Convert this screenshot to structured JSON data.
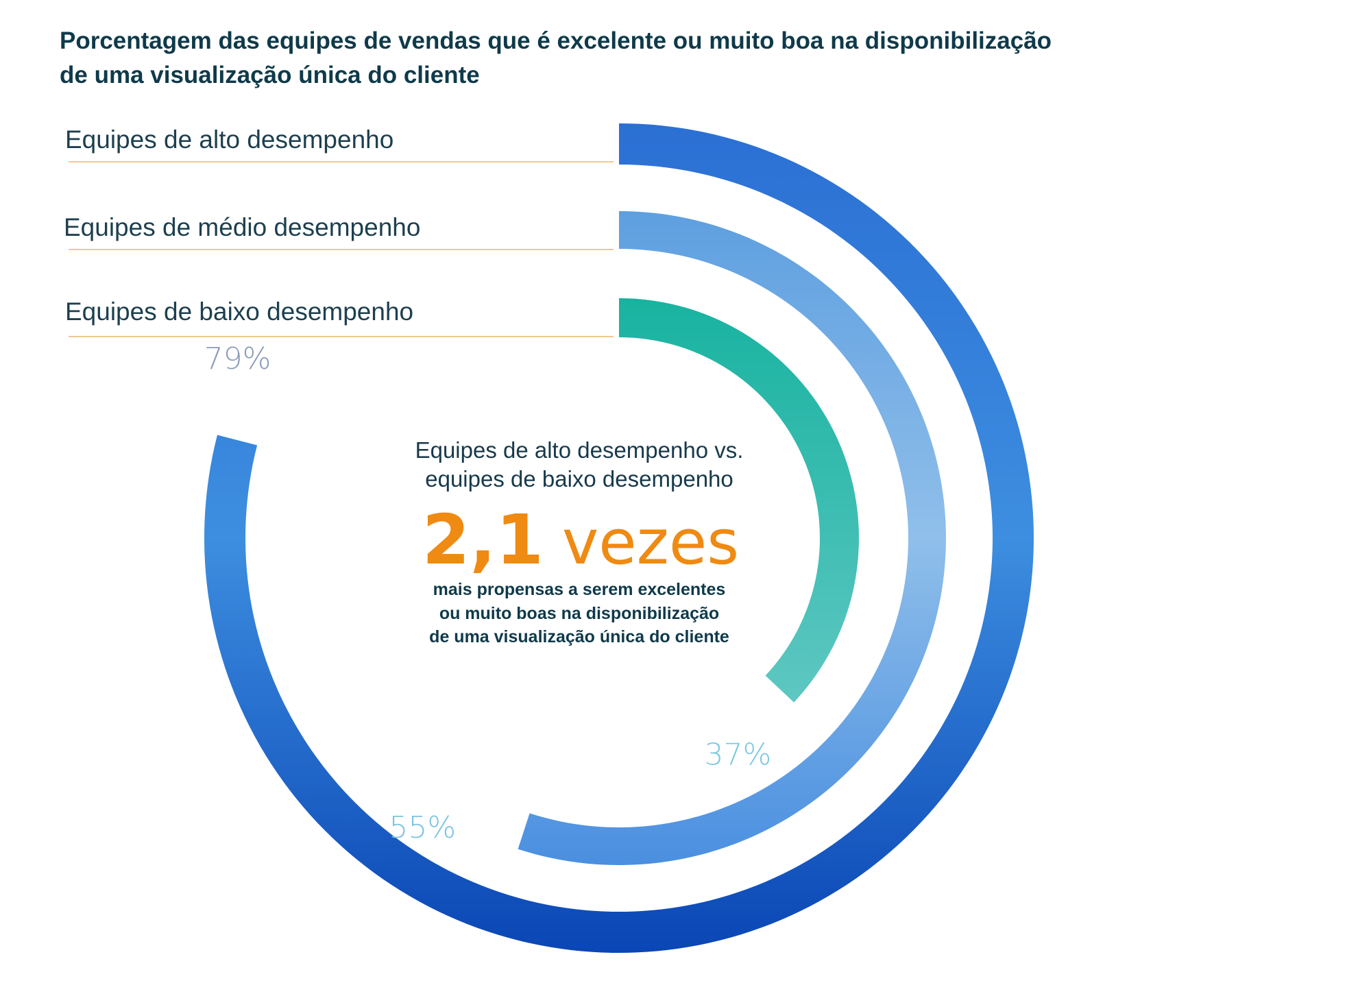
{
  "chart_data": {
    "type": "radial-bar",
    "title": "Porcentagem das equipes de vendas que é excelente ou muito boa na disponibilização de uma visualização única do cliente",
    "title_lines": [
      "Porcentagem das equipes de vendas que é excelente ou muito boa na disponibilização",
      "de uma visualização única do cliente"
    ],
    "ylim": [
      0,
      100
    ],
    "categories": [
      "Equipes de alto desempenho",
      "Equipes de médio desempenho",
      "Equipes de baixo desempenho"
    ],
    "values": [
      79,
      55,
      37
    ],
    "value_labels": [
      "79%",
      "55%",
      "37%"
    ],
    "colors": {
      "high_start": "#2b6fd4",
      "high_mid": "#3d8ee0",
      "high_end": "#0a46b5",
      "mid_start": "#5e9fe0",
      "mid_mid": "#90bfea",
      "mid_end": "#4a8fe0",
      "low_start": "#18b3a0",
      "low_end": "#5ec7c2",
      "label_high": "#8a9bb8",
      "label_mid": "#7cc4e0",
      "label_low": "#7cc9e0",
      "separator": "#f0c890",
      "accent": "#ef8a12"
    },
    "annotation": {
      "heading_lines": [
        "Equipes de alto desempenho vs.",
        "equipes de baixo desempenho"
      ],
      "multiplier": "2,1",
      "unit": "vezes",
      "body_lines": [
        "mais propensas a serem excelentes",
        "ou muito boas na disponibilização",
        "de uma visualização única do cliente"
      ]
    }
  }
}
